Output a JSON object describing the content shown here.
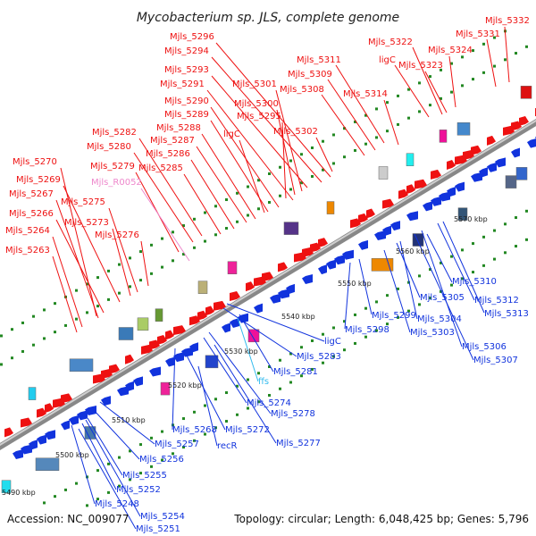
{
  "title": "Mycobacterium sp. JLS, complete genome",
  "footer": {
    "accession": "Accession: NC_009077",
    "topology": "Topology: circular; Length: 6,048,425 bp; Genes: 5,796"
  },
  "colors": {
    "plus_strand": "#ee1111",
    "minus_strand": "#1133dd",
    "rna": "#ee88cc",
    "ffs": "#33bbee",
    "backbone": "#888888",
    "tick": "#228822"
  },
  "scale_labels": [
    "5490 kbp",
    "5500 kbp",
    "5510 kbp",
    "5520 kbp",
    "5530 kbp",
    "5540 kbp",
    "5550 kbp",
    "5560 kbp",
    "5570 kbp"
  ],
  "top_labels": [
    "Mjls_5332",
    "Mjls_5331",
    "Mjls_5322",
    "Mjls_5324",
    "ligC",
    "Mjls_5323",
    "Mjls_5296",
    "Mjls_5294",
    "Mjls_5311",
    "Mjls_5293",
    "Mjls_5309",
    "Mjls_5301",
    "Mjls_5308",
    "Mjls_5291",
    "Mjls_5314",
    "Mjls_5290",
    "Mjls_5300",
    "Mjls_5289",
    "Mjls_5295",
    "Mjls_5288",
    "Mjls_5302",
    "ligC",
    "Mjls_5287",
    "Mjls_5282",
    "Mjls_5280",
    "Mjls_5286",
    "Mjls_5279",
    "Mjls_5285",
    "Mjls_5270",
    "Mjls_5269",
    "Mjls_R0052",
    "Mjls_5275",
    "Mjls_5267",
    "Mjls_5273",
    "Mjls_5266",
    "Mjls_5276",
    "Mjls_5264",
    "Mjls_5263"
  ],
  "bottom_labels": [
    "Mjls_5310",
    "Mjls_5312",
    "Mjls_5305",
    "Mjls_5313",
    "Mjls_5299",
    "Mjls_5304",
    "Mjls_5298",
    "Mjls_5303",
    "Mjls_5306",
    "Mjls_5307",
    "ligC",
    "Mjls_5283",
    "Mjls_5281",
    "ffs",
    "Mjls_5274",
    "Mjls_5278",
    "Mjls_5268",
    "Mjls_5272",
    "recR",
    "Mjls_5277",
    "Mjls_5257",
    "Mjls_5256",
    "Mjls_5255",
    "Mjls_5252",
    "Mjls_5248",
    "Mjls_5254",
    "Mjls_5251"
  ]
}
